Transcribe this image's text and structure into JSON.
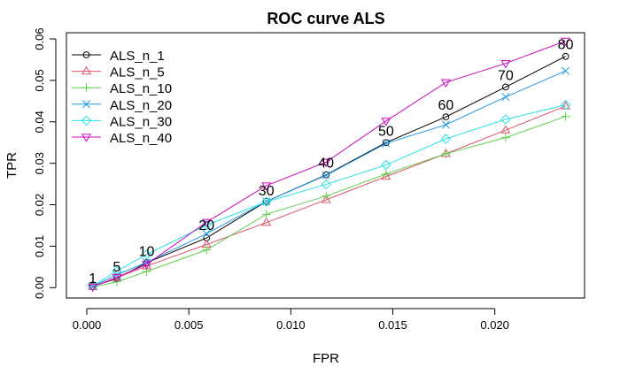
{
  "chart_data": {
    "type": "line",
    "title": "ROC curve ALS",
    "xlabel": "FPR",
    "ylabel": "TPR",
    "xlim": [
      -0.001,
      0.0244
    ],
    "ylim": [
      -0.0025,
      0.0615
    ],
    "x_ticks": [
      0.0,
      0.005,
      0.01,
      0.015,
      0.02
    ],
    "x_tick_labels": [
      "0.000",
      "0.005",
      "0.010",
      "0.015",
      "0.020"
    ],
    "y_ticks": [
      0.0,
      0.01,
      0.02,
      0.03,
      0.04,
      0.05,
      0.06
    ],
    "y_tick_labels": [
      "0.00",
      "0.01",
      "0.02",
      "0.03",
      "0.04",
      "0.05",
      "0.06"
    ],
    "grid": false,
    "legend": {
      "position": "top-left",
      "entries": [
        "ALS_n_1",
        "ALS_n_5",
        "ALS_n_10",
        "ALS_n_20",
        "ALS_n_30",
        "ALS_n_40"
      ]
    },
    "x": [
      0.00029,
      0.00147,
      0.00293,
      0.00587,
      0.0088,
      0.01173,
      0.01467,
      0.0176,
      0.02053,
      0.02347
    ],
    "series": [
      {
        "name": "ALS_n_1",
        "color": "#000000",
        "marker": "circle",
        "values": [
          0.0003,
          0.0022,
          0.006,
          0.012,
          0.0208,
          0.0272,
          0.035,
          0.0412,
          0.0484,
          0.0558
        ]
      },
      {
        "name": "ALS_n_5",
        "color": "#DF536B",
        "marker": "triangle-up",
        "values": [
          0.0002,
          0.0024,
          0.0052,
          0.0104,
          0.0157,
          0.0212,
          0.0268,
          0.0323,
          0.038,
          0.0438
        ]
      },
      {
        "name": "ALS_n_10",
        "color": "#61D04F",
        "marker": "plus",
        "values": [
          0.0001,
          0.0014,
          0.0039,
          0.0091,
          0.0177,
          0.0221,
          0.0274,
          0.0323,
          0.0362,
          0.0413
        ]
      },
      {
        "name": "ALS_n_20",
        "color": "#2297E6",
        "marker": "cross",
        "values": [
          0.0003,
          0.0031,
          0.0061,
          0.013,
          0.0208,
          0.0271,
          0.0348,
          0.0393,
          0.046,
          0.0523
        ]
      },
      {
        "name": "ALS_n_30",
        "color": "#28E2E5",
        "marker": "diamond",
        "values": [
          0.0004,
          0.004,
          0.008,
          0.0151,
          0.0207,
          0.0249,
          0.0296,
          0.0359,
          0.0406,
          0.0441
        ]
      },
      {
        "name": "ALS_n_40",
        "color": "#CD0BBC",
        "marker": "triangle-down",
        "values": [
          0.0002,
          0.0025,
          0.0056,
          0.0158,
          0.0246,
          0.0303,
          0.0402,
          0.0495,
          0.0541,
          0.0595
        ]
      }
    ],
    "annotations": [
      {
        "text": "1",
        "x": 0.00029,
        "y": 0.0024
      },
      {
        "text": "5",
        "x": 0.00147,
        "y": 0.0052
      },
      {
        "text": "10",
        "x": 0.00293,
        "y": 0.0089
      },
      {
        "text": "20",
        "x": 0.00587,
        "y": 0.0152
      },
      {
        "text": "30",
        "x": 0.0088,
        "y": 0.0235
      },
      {
        "text": "40",
        "x": 0.01173,
        "y": 0.0302
      },
      {
        "text": "50",
        "x": 0.01467,
        "y": 0.0379
      },
      {
        "text": "60",
        "x": 0.0176,
        "y": 0.0442
      },
      {
        "text": "70",
        "x": 0.02053,
        "y": 0.0514
      },
      {
        "text": "80",
        "x": 0.02347,
        "y": 0.0588
      }
    ]
  }
}
